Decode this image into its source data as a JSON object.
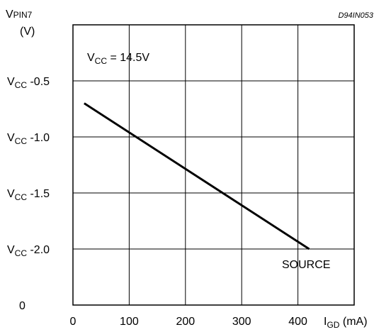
{
  "chart_data": {
    "type": "line",
    "figure_code": "D94IN053",
    "ylabel": {
      "main": "V",
      "sub": "PIN7",
      "unit": "(V)"
    },
    "xlabel": {
      "main": "I",
      "sub": "GD",
      "unit": " (mA)"
    },
    "xlim": [
      0,
      500
    ],
    "ylim": [
      0,
      2.5
    ],
    "grid": true,
    "x_ticks": [
      {
        "value": 0,
        "label": "0"
      },
      {
        "value": 100,
        "label": "100"
      },
      {
        "value": 200,
        "label": "200"
      },
      {
        "value": 300,
        "label": "300"
      },
      {
        "value": 400,
        "label": "400"
      }
    ],
    "y_ticks": [
      {
        "value": 0,
        "main": "",
        "sub": "",
        "rest": "0"
      },
      {
        "value": 0.5,
        "main": "V",
        "sub": "CC",
        "rest": " -2.0"
      },
      {
        "value": 1.0,
        "main": "V",
        "sub": "CC",
        "rest": " -1.5"
      },
      {
        "value": 1.5,
        "main": "V",
        "sub": "CC",
        "rest": " -1.0"
      },
      {
        "value": 2.0,
        "main": "V",
        "sub": "CC",
        "rest": " -0.5"
      }
    ],
    "annotations": {
      "condition": {
        "main": "V",
        "sub": "CC",
        "rest": " = 14.5V"
      },
      "curve_label": "SOURCE"
    },
    "series": [
      {
        "points": [
          {
            "x": 20,
            "y": 1.8
          },
          {
            "x": 420,
            "y": 0.5
          }
        ]
      }
    ]
  }
}
